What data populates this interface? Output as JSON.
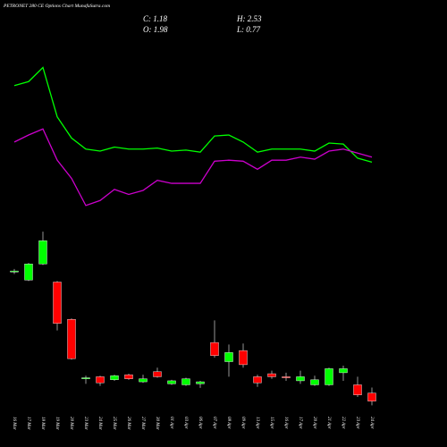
{
  "chart_data": {
    "type": "candlestick",
    "title": "PETRONET 280 CE Options Chart MunafaSutra.com",
    "header": {
      "close": "C: 1.18",
      "high": "H: 2.53",
      "open": "O: 1.98",
      "low": "L: 0.77"
    },
    "categories": [
      "16 Mar",
      "17 Mar",
      "18 Mar",
      "19 Mar",
      "20 Mar",
      "23 Mar",
      "24 Mar",
      "25 Mar",
      "26 Mar",
      "27 Mar",
      "30 Mar",
      "01 Apr",
      "03 Apr",
      "06 Apr",
      "07 Apr",
      "08 Apr",
      "09 Apr",
      "13 Apr",
      "15 Apr",
      "16 Apr",
      "17 Apr",
      "20 Apr",
      "21 Apr",
      "22 Apr",
      "23 Apr",
      "24 Apr"
    ],
    "open": [
      14.0,
      13.2,
      14.8,
      13.0,
      9.3,
      3.4,
      3.6,
      3.3,
      3.8,
      3.1,
      4.1,
      2.9,
      2.8,
      2.9,
      7.0,
      5.1,
      6.2,
      3.6,
      3.9,
      3.6,
      3.2,
      2.8,
      2.8,
      4.0,
      2.8,
      1.98
    ],
    "high": [
      14.3,
      14.9,
      18.0,
      13.1,
      9.4,
      3.7,
      3.7,
      3.8,
      3.9,
      3.8,
      4.5,
      3.3,
      3.5,
      3.2,
      9.2,
      6.8,
      6.9,
      3.8,
      4.2,
      4.0,
      4.2,
      3.7,
      4.5,
      4.7,
      3.6,
      2.53
    ],
    "low": [
      13.8,
      13.1,
      14.7,
      8.2,
      5.3,
      2.9,
      2.7,
      3.2,
      3.3,
      3.0,
      3.5,
      2.8,
      2.7,
      2.5,
      5.5,
      3.6,
      4.5,
      2.6,
      3.4,
      3.2,
      2.9,
      2.7,
      2.7,
      3.2,
      1.6,
      0.77
    ],
    "close": [
      14.1,
      14.8,
      17.1,
      8.9,
      5.4,
      3.5,
      3.0,
      3.7,
      3.4,
      3.4,
      3.6,
      3.2,
      3.4,
      3.1,
      5.7,
      6.0,
      4.8,
      3.0,
      3.6,
      3.5,
      3.6,
      3.3,
      4.4,
      4.4,
      1.8,
      1.18
    ],
    "up_color": "#00ff00",
    "down_color": "#ff0000",
    "series": [
      {
        "color": "#00ff00",
        "values": [
          32.5,
          32.9,
          34.3,
          29.4,
          27.3,
          26.2,
          26.0,
          26.4,
          26.2,
          26.2,
          26.3,
          26.0,
          26.1,
          25.9,
          27.5,
          27.6,
          26.9,
          25.9,
          26.2,
          26.2,
          26.2,
          26.0,
          26.8,
          26.7,
          25.3,
          24.9
        ]
      },
      {
        "color": "#cc00cc",
        "values": [
          26.9,
          27.6,
          28.2,
          25.1,
          23.3,
          20.6,
          21.1,
          22.2,
          21.7,
          22.1,
          23.1,
          22.8,
          22.8,
          22.8,
          25.0,
          25.1,
          25.0,
          24.2,
          25.1,
          25.1,
          25.4,
          25.2,
          26.0,
          26.2,
          25.8,
          25.4
        ]
      }
    ],
    "ylim": [
      0,
      41
    ]
  }
}
